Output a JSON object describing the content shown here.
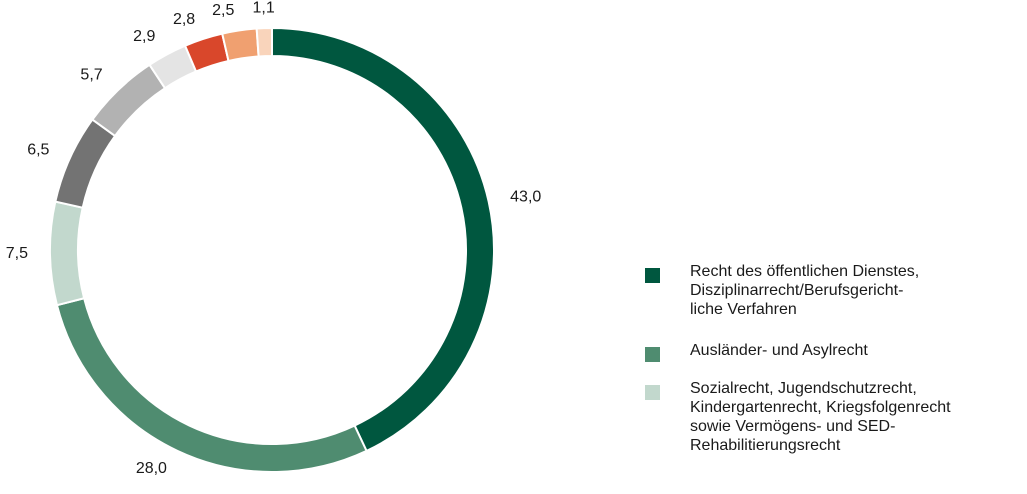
{
  "chart_data": {
    "type": "pie",
    "donut": true,
    "values": [
      43.0,
      28.0,
      7.5,
      6.5,
      5.7,
      2.9,
      2.8,
      2.5,
      1.1
    ],
    "labels": [
      "43,0",
      "28,0",
      "7,5",
      "6,5",
      "5,7",
      "2,9",
      "2,8",
      "2,5",
      "1,1"
    ],
    "colors": [
      "#00573f",
      "#4f8c70",
      "#c2d8cd",
      "#737373",
      "#b2b2b2",
      "#e4e4e4",
      "#d9472b",
      "#f0a070",
      "#f9d4bb"
    ],
    "legend": [
      {
        "label": "Recht des öffentlichen Dienstes, Disziplinarrecht/Berufsgericht-liche Verfahren",
        "lines": [
          "Recht des öffentlichen Dienstes,",
          "Disziplinarrecht/Berufsgericht-",
          "liche Verfahren"
        ],
        "color": "#00573f"
      },
      {
        "label": "Ausländer- und Asylrecht",
        "lines": [
          "Ausländer- und Asylrecht"
        ],
        "color": "#4f8c70"
      },
      {
        "label": "Sozialrecht, Jugendschutzrecht, Kindergartenrecht, Kriegsfolgenrecht sowie Vermögens- und SED-Rehabilitierungsrecht",
        "lines": [
          "Sozialrecht, Jugendschutzrecht,",
          "Kindergartenrecht, Kriegsfolgenrecht",
          "sowie Vermögens- und SED-",
          "Rehabilitierungsrecht"
        ],
        "color": "#c2d8cd"
      }
    ],
    "legend_placement": "right"
  }
}
